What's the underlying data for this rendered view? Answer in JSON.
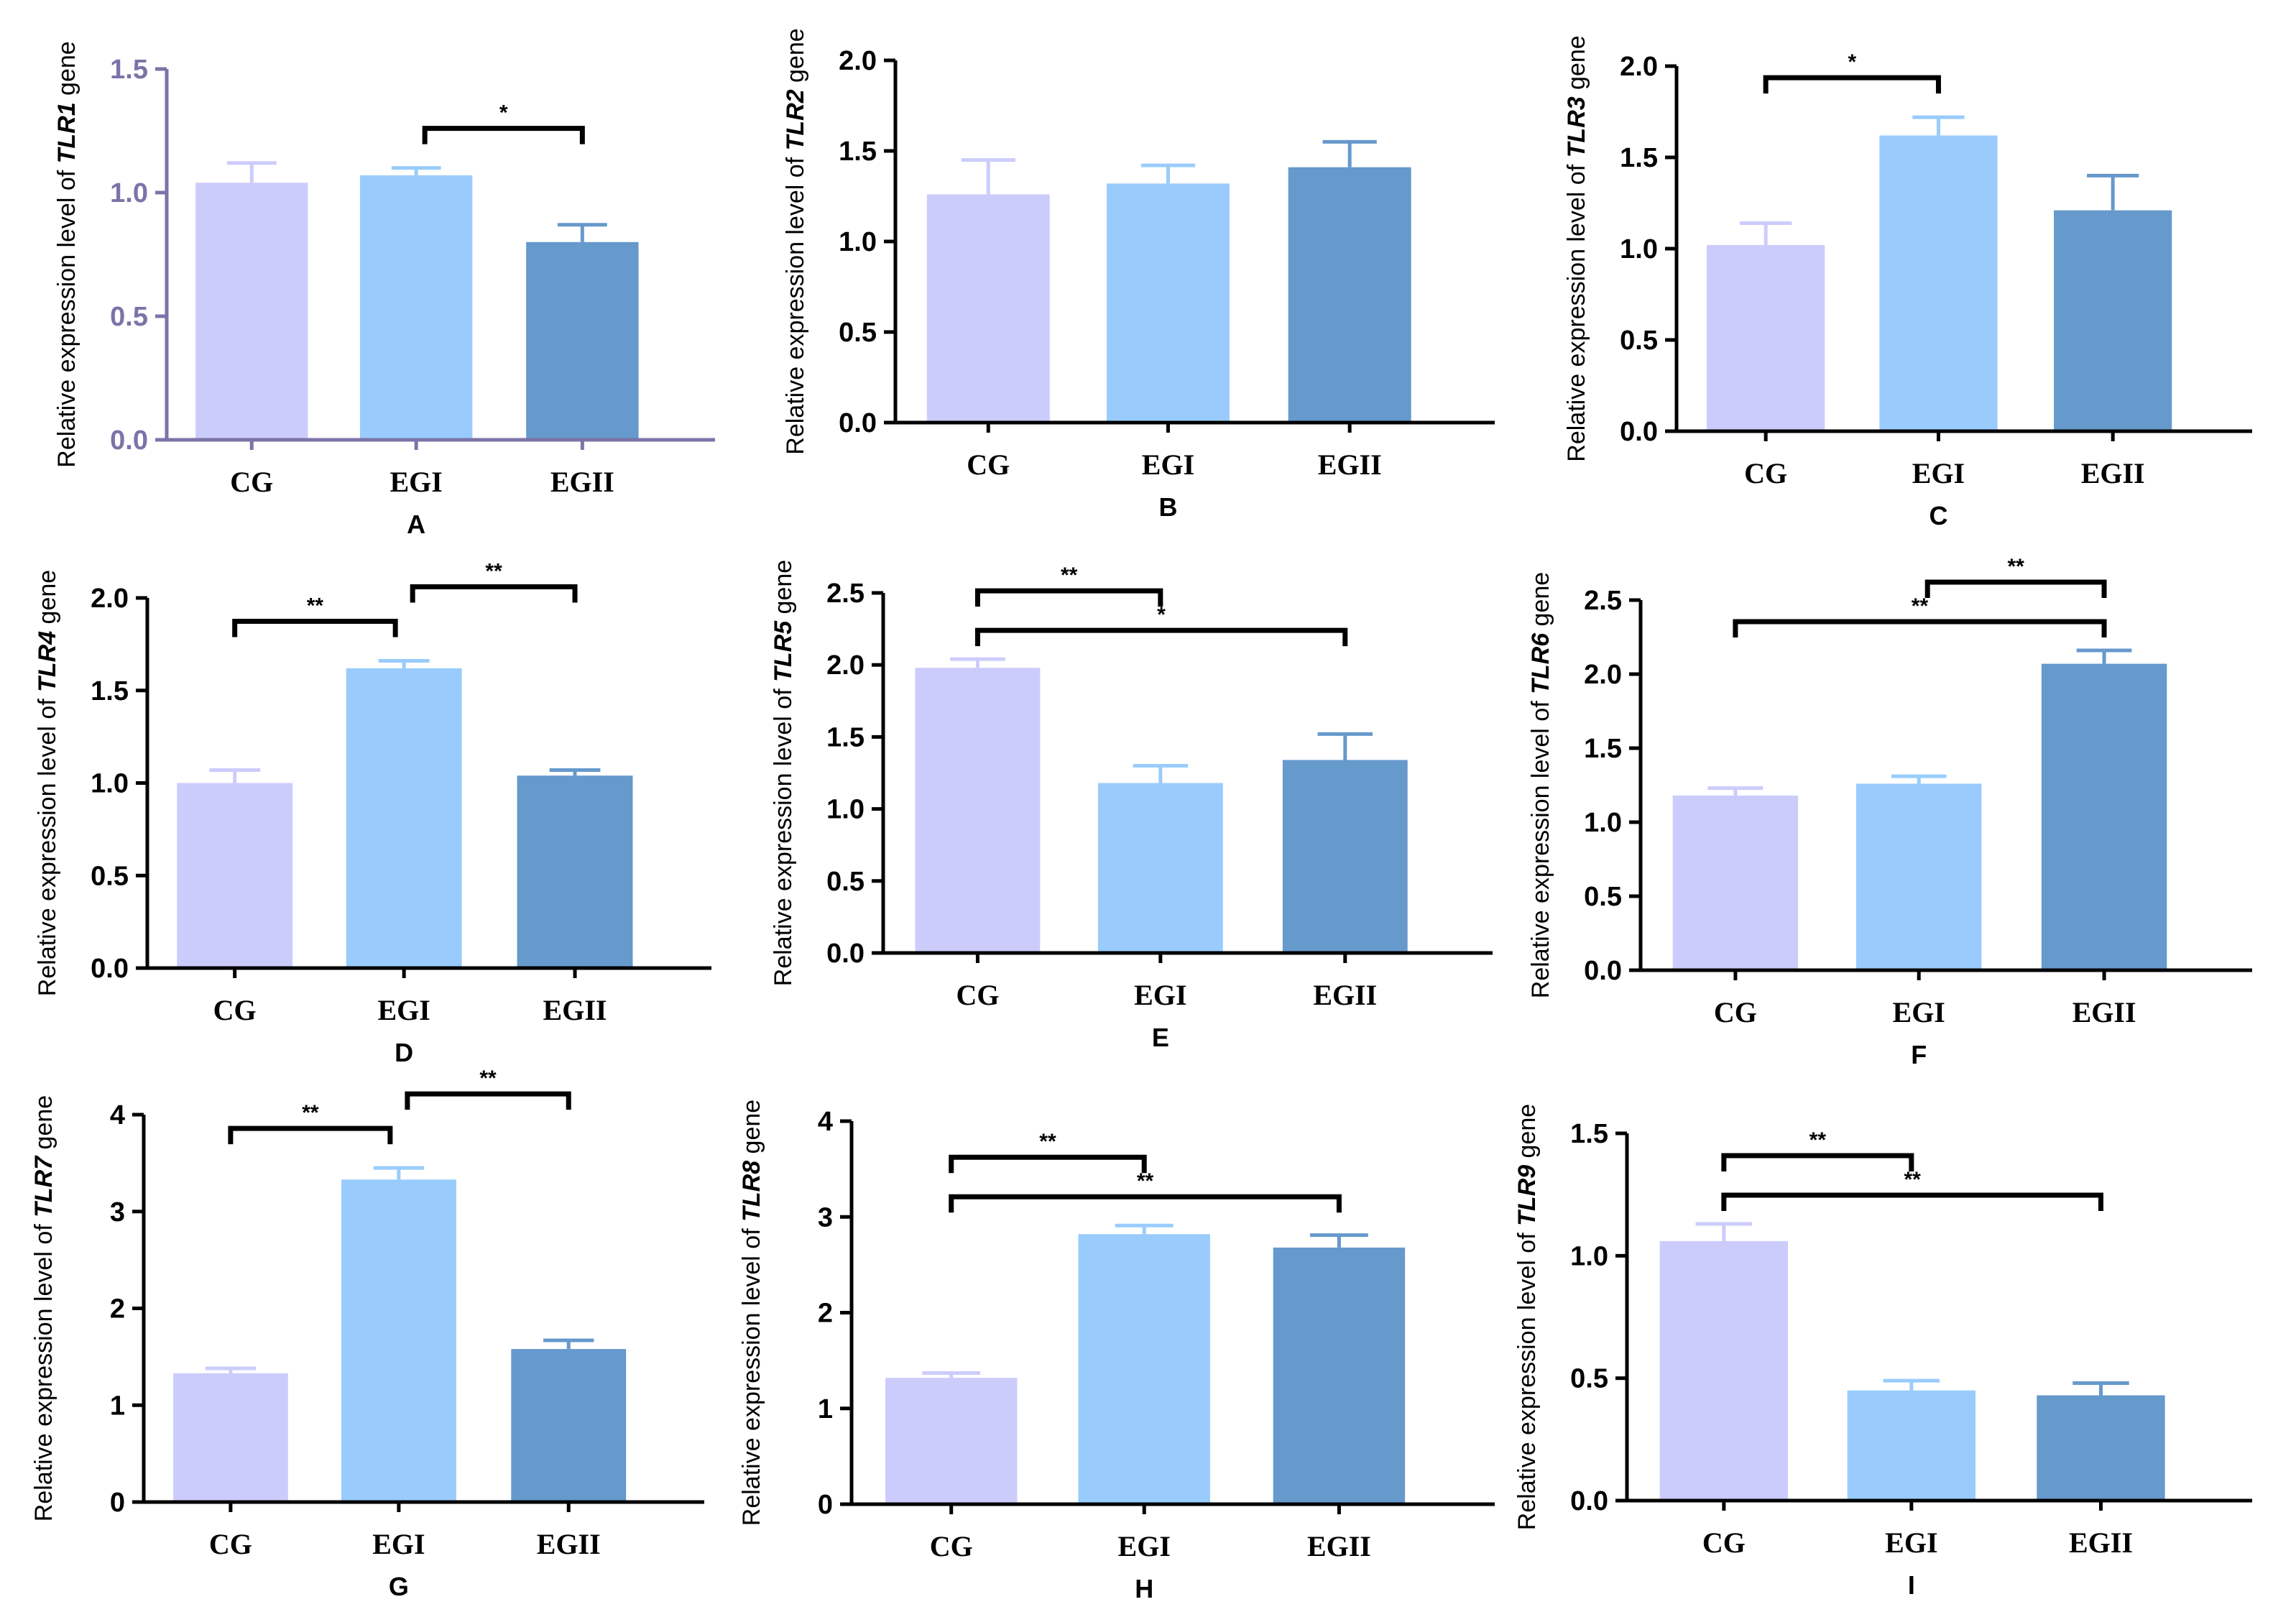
{
  "figure": {
    "colors": {
      "CG": "#ccccfc",
      "EGI": "#99ccfc",
      "EGII": "#6699cc",
      "axis": "#000000",
      "axis_alt": "#7b73a8"
    }
  },
  "chart_data": [
    {
      "type": "bar",
      "panel_label": "A",
      "ylabel_prefix": "Relative expression level of ",
      "ylabel_gene": "TLR1",
      "ylabel_suffix": " gene",
      "categories": [
        "CG",
        "EGI",
        "EGII"
      ],
      "values": [
        1.04,
        1.07,
        0.8
      ],
      "errors": [
        0.08,
        0.03,
        0.07
      ],
      "ylim": [
        0,
        1.5
      ],
      "yticks": [
        "0.0",
        "0.5",
        "1.0",
        "1.5"
      ],
      "significance": [
        {
          "from": 1,
          "to": 2,
          "label": "*"
        }
      ]
    },
    {
      "type": "bar",
      "panel_label": "B",
      "ylabel_prefix": "Relative expression level of ",
      "ylabel_gene": "TLR2",
      "ylabel_suffix": " gene",
      "categories": [
        "CG",
        "EGI",
        "EGII"
      ],
      "values": [
        1.26,
        1.32,
        1.41
      ],
      "errors": [
        0.19,
        0.1,
        0.14
      ],
      "ylim": [
        0,
        2.0
      ],
      "yticks": [
        "0.0",
        "0.5",
        "1.0",
        "1.5",
        "2.0"
      ],
      "significance": []
    },
    {
      "type": "bar",
      "panel_label": "C",
      "ylabel_prefix": "Relative expression level of ",
      "ylabel_gene": "TLR3",
      "ylabel_suffix": " gene",
      "categories": [
        "CG",
        "EGI",
        "EGII"
      ],
      "values": [
        1.02,
        1.62,
        1.21
      ],
      "errors": [
        0.12,
        0.1,
        0.19
      ],
      "ylim": [
        0,
        2.0
      ],
      "yticks": [
        "0.0",
        "0.5",
        "1.0",
        "1.5",
        "2.0"
      ],
      "significance": [
        {
          "from": 0,
          "to": 1,
          "label": "*"
        }
      ]
    },
    {
      "type": "bar",
      "panel_label": "D",
      "ylabel_prefix": "Relative expression level of ",
      "ylabel_gene": "TLR4",
      "ylabel_suffix": " gene",
      "categories": [
        "CG",
        "EGI",
        "EGII"
      ],
      "values": [
        1.0,
        1.62,
        1.04
      ],
      "errors": [
        0.07,
        0.04,
        0.03
      ],
      "ylim": [
        0,
        2.0
      ],
      "yticks": [
        "0.0",
        "0.5",
        "1.0",
        "1.5",
        "2.0"
      ],
      "significance": [
        {
          "from": 0,
          "to": 1,
          "label": "**"
        },
        {
          "from": 1,
          "to": 2,
          "label": "**"
        }
      ]
    },
    {
      "type": "bar",
      "panel_label": "E",
      "ylabel_prefix": "Relative expression level of ",
      "ylabel_gene": "TLR5",
      "ylabel_suffix": " gene",
      "categories": [
        "CG",
        "EGI",
        "EGII"
      ],
      "values": [
        1.98,
        1.18,
        1.34
      ],
      "errors": [
        0.06,
        0.12,
        0.18
      ],
      "ylim": [
        0,
        2.5
      ],
      "yticks": [
        "0.0",
        "0.5",
        "1.0",
        "1.5",
        "2.0",
        "2.5"
      ],
      "significance": [
        {
          "from": 0,
          "to": 1,
          "label": "**"
        },
        {
          "from": 0,
          "to": 2,
          "label": "*"
        }
      ]
    },
    {
      "type": "bar",
      "panel_label": "F",
      "ylabel_prefix": "Relative expression level of ",
      "ylabel_gene": "TLR6",
      "ylabel_suffix": " gene",
      "categories": [
        "CG",
        "EGI",
        "EGII"
      ],
      "values": [
        1.18,
        1.26,
        2.07
      ],
      "errors": [
        0.05,
        0.05,
        0.09
      ],
      "ylim": [
        0,
        2.5
      ],
      "yticks": [
        "0.0",
        "0.5",
        "1.0",
        "1.5",
        "2.0",
        "2.5"
      ],
      "significance": [
        {
          "from": 1,
          "to": 2,
          "label": "**"
        },
        {
          "from": 0,
          "to": 2,
          "label": "**"
        }
      ]
    },
    {
      "type": "bar",
      "panel_label": "G",
      "ylabel_prefix": "Relative expression level of ",
      "ylabel_gene": "TLR7",
      "ylabel_suffix": " gene",
      "categories": [
        "CG",
        "EGI",
        "EGII"
      ],
      "values": [
        1.33,
        3.33,
        1.58
      ],
      "errors": [
        0.05,
        0.12,
        0.09
      ],
      "ylim": [
        0,
        4
      ],
      "yticks": [
        "0",
        "1",
        "2",
        "3",
        "4"
      ],
      "significance": [
        {
          "from": 0,
          "to": 1,
          "label": "**"
        },
        {
          "from": 1,
          "to": 2,
          "label": "**"
        }
      ]
    },
    {
      "type": "bar",
      "panel_label": "H",
      "ylabel_prefix": "Relative expression level of ",
      "ylabel_gene": "TLR8",
      "ylabel_suffix": " gene",
      "categories": [
        "CG",
        "EGI",
        "EGII"
      ],
      "values": [
        1.32,
        2.82,
        2.68
      ],
      "errors": [
        0.05,
        0.09,
        0.13
      ],
      "ylim": [
        0,
        4
      ],
      "yticks": [
        "0",
        "1",
        "2",
        "3",
        "4"
      ],
      "significance": [
        {
          "from": 0,
          "to": 1,
          "label": "**"
        },
        {
          "from": 0,
          "to": 2,
          "label": "**"
        }
      ]
    },
    {
      "type": "bar",
      "panel_label": "I",
      "ylabel_prefix": "Relative expression level of ",
      "ylabel_gene": "TLR9",
      "ylabel_suffix": " gene",
      "categories": [
        "CG",
        "EGI",
        "EGII"
      ],
      "values": [
        1.06,
        0.45,
        0.43
      ],
      "errors": [
        0.07,
        0.04,
        0.05
      ],
      "ylim": [
        0,
        1.5
      ],
      "yticks": [
        "0.0",
        "0.5",
        "1.0",
        "1.5"
      ],
      "significance": [
        {
          "from": 0,
          "to": 1,
          "label": "**"
        },
        {
          "from": 0,
          "to": 2,
          "label": "**"
        }
      ]
    }
  ]
}
